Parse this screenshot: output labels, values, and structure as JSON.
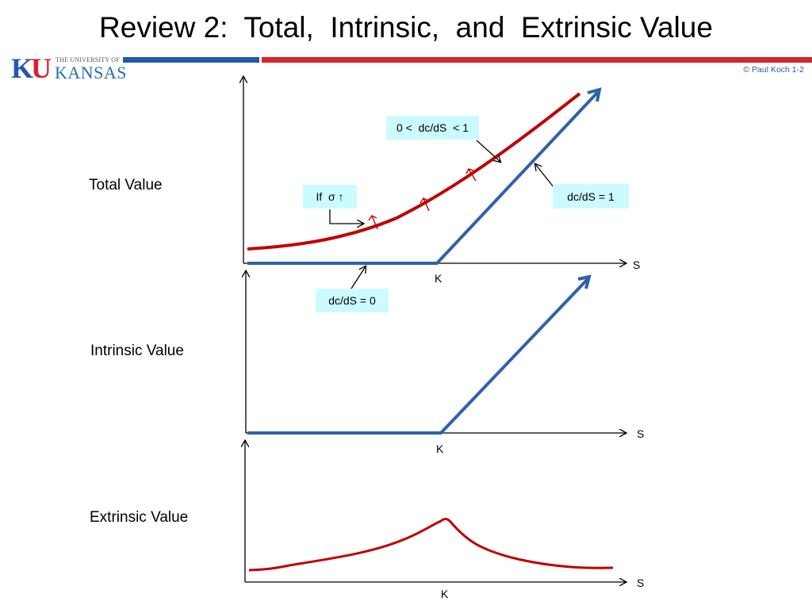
{
  "slide": {
    "title": "Review 2:  Total,  Intrinsic,  and  Extrinsic Value",
    "credit": "© Paul Koch 1-2"
  },
  "logo": {
    "ku": "KU",
    "top_line": "THE UNIVERSITY OF",
    "bottom_line": "KANSAS"
  },
  "colors": {
    "red_curve": "#c00000",
    "blue_line": "#2e62aa",
    "box_fill": "#ccfbff",
    "bar_blue": "#2457b0",
    "bar_red": "#d6232d"
  },
  "panels": {
    "total": {
      "label": "Total Value",
      "x_axis": "S",
      "strike": "K",
      "annotations": {
        "slope_mid": "0 <  dc/dS  < 1",
        "slope_one": "dc/dS = 1",
        "slope_zero": "dc/dS = 0",
        "sigma": "If  σ ↑"
      }
    },
    "intrinsic": {
      "label": "Intrinsic Value",
      "x_axis": "S",
      "strike": "K"
    },
    "extrinsic": {
      "label": "Extrinsic Value",
      "x_axis": "S",
      "strike": "K"
    }
  }
}
